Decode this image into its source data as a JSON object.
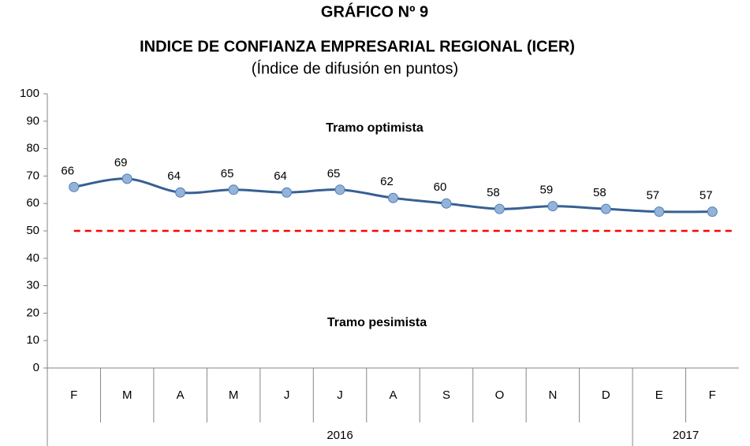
{
  "chart_data": {
    "type": "line",
    "title": "GRÁFICO Nº 9",
    "subtitle": "INDICE DE CONFIANZA EMPRESARIAL REGIONAL (ICER)",
    "note": "(Índice de difusión en puntos)",
    "annotations": [
      "Tramo optimista",
      "Tramo pesimista"
    ],
    "groups": [
      {
        "label": "2016",
        "categories": [
          "F",
          "M",
          "A",
          "M",
          "J",
          "J",
          "A",
          "S",
          "O",
          "N",
          "D"
        ]
      },
      {
        "label": "2017",
        "categories": [
          "E",
          "F"
        ]
      }
    ],
    "values": [
      66,
      69,
      64,
      65,
      64,
      65,
      62,
      60,
      58,
      59,
      58,
      57,
      57
    ],
    "color": "#376092",
    "marker_color": "#95b3d7",
    "reference_line": {
      "value": 50,
      "color": "#ff0000"
    },
    "ylim": [
      0,
      100
    ],
    "yticks": [
      0,
      10,
      20,
      30,
      40,
      50,
      60,
      70,
      80,
      90,
      100
    ]
  }
}
